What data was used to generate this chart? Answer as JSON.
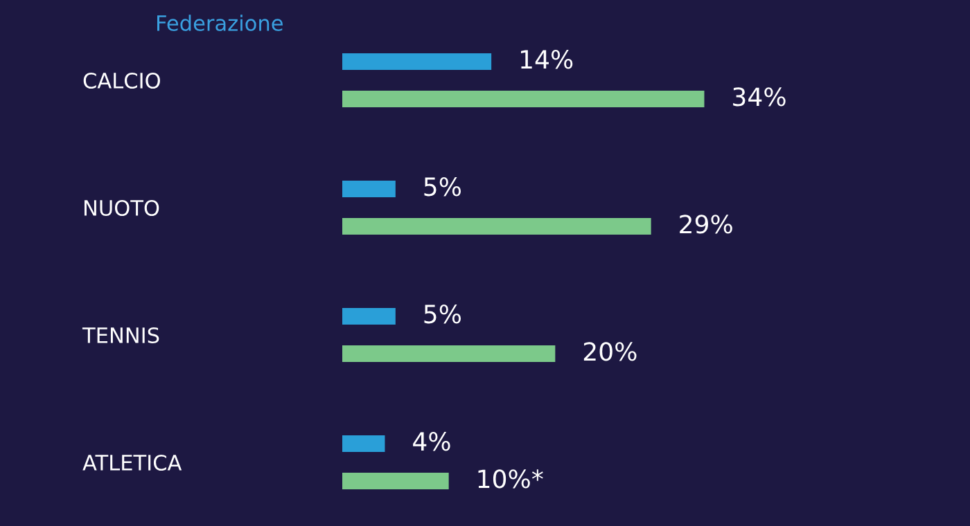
{
  "chart_data": {
    "type": "bar",
    "orientation": "horizontal",
    "title": "Federazione",
    "categories": [
      "CALCIO",
      "NUOTO",
      "TENNIS",
      "ATLETICA"
    ],
    "series": [
      {
        "color": "#2a9fd8",
        "values": [
          14,
          5,
          5,
          4
        ],
        "value_labels": [
          "14%",
          "5%",
          "5%",
          "4%"
        ]
      },
      {
        "color": "#7cc98a",
        "values": [
          34,
          29,
          20,
          10
        ],
        "value_labels": [
          "34%",
          "29%",
          "20%",
          "10%*"
        ]
      }
    ],
    "tick_labels": "y",
    "grid": false,
    "legend": false
  }
}
